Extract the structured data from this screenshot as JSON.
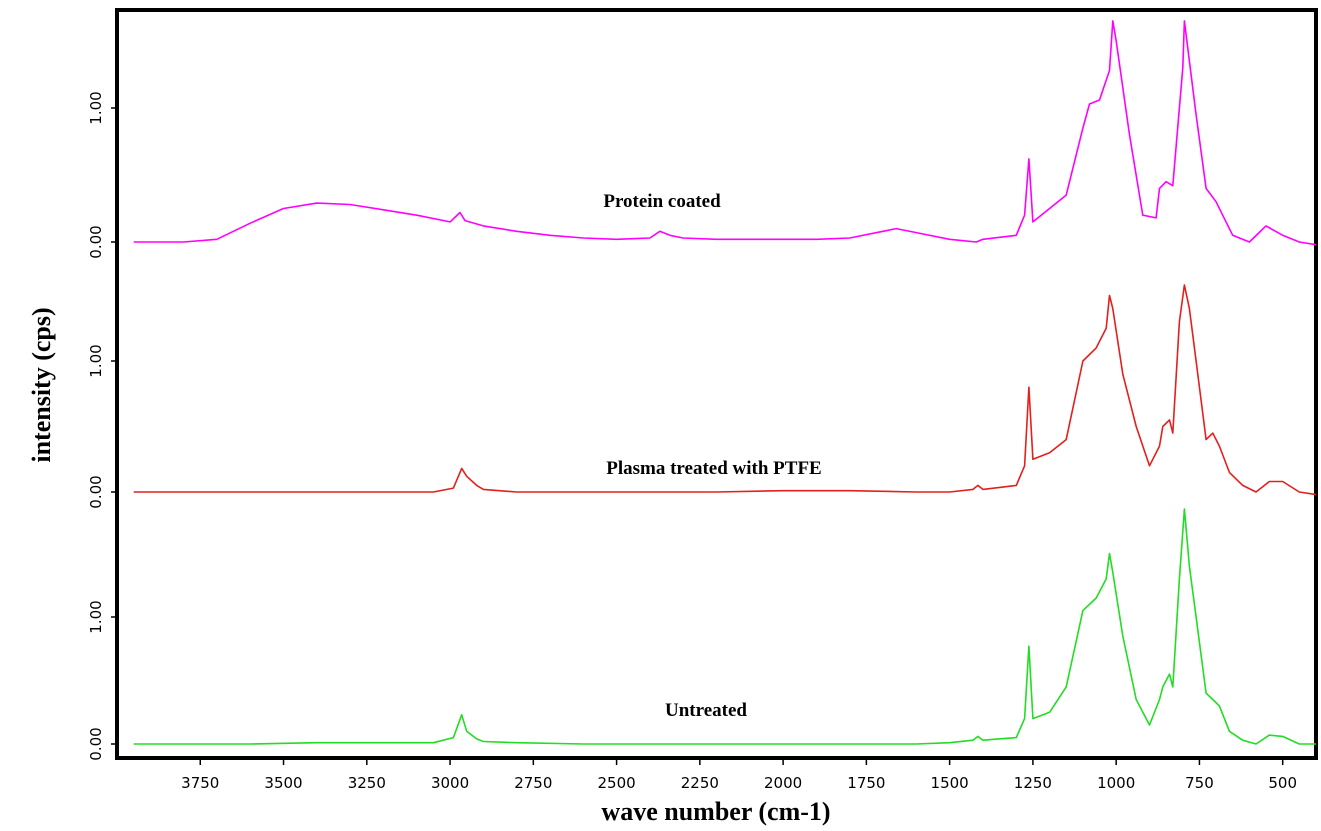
{
  "chart_data": {
    "type": "line",
    "title": "",
    "xlabel": "wave number (cm-1)",
    "ylabel": "intensity (cps)",
    "x_axis": {
      "reversed": true,
      "range": [
        4000,
        400
      ],
      "ticks": [
        3750,
        3500,
        3250,
        3000,
        2750,
        2500,
        2250,
        2000,
        1750,
        1500,
        1250,
        1000,
        750,
        500
      ],
      "tick_labels": [
        "3750",
        "3500",
        "3250",
        "3000",
        "2750",
        "2500",
        "2250",
        "2000",
        "1750",
        "1500",
        "1250",
        "1000",
        "750",
        "500"
      ]
    },
    "y_tick_labels": [
      "0.00",
      "1.00"
    ],
    "grid": false,
    "series": [
      {
        "name": "Protein coated",
        "color": "#ff00ff",
        "x": [
          3950,
          3800,
          3700,
          3600,
          3500,
          3400,
          3300,
          3200,
          3100,
          3000,
          2970,
          2955,
          2900,
          2800,
          2700,
          2600,
          2500,
          2400,
          2370,
          2340,
          2300,
          2200,
          2100,
          2000,
          1900,
          1800,
          1700,
          1660,
          1600,
          1500,
          1420,
          1400,
          1300,
          1275,
          1262,
          1250,
          1200,
          1150,
          1100,
          1080,
          1050,
          1020,
          1010,
          1000,
          960,
          920,
          880,
          870,
          850,
          830,
          800,
          795,
          780,
          760,
          730,
          700,
          680,
          650,
          600,
          550,
          500,
          450,
          400
        ],
        "y": [
          0.0,
          0.0,
          0.02,
          0.14,
          0.25,
          0.29,
          0.28,
          0.24,
          0.2,
          0.15,
          0.22,
          0.16,
          0.12,
          0.08,
          0.05,
          0.03,
          0.02,
          0.03,
          0.08,
          0.05,
          0.03,
          0.02,
          0.02,
          0.02,
          0.02,
          0.03,
          0.08,
          0.1,
          0.07,
          0.02,
          0.0,
          0.02,
          0.05,
          0.2,
          0.62,
          0.15,
          0.25,
          0.35,
          0.85,
          1.03,
          1.06,
          1.28,
          1.65,
          1.5,
          0.8,
          0.2,
          0.18,
          0.4,
          0.45,
          0.42,
          1.3,
          1.65,
          1.35,
          0.95,
          0.4,
          0.3,
          0.2,
          0.05,
          0.0,
          0.12,
          0.05,
          0.0,
          -0.02
        ]
      },
      {
        "name": "Plasma treated with PTFE",
        "color": "#e3201b",
        "x": [
          3950,
          3800,
          3600,
          3400,
          3200,
          3050,
          2990,
          2965,
          2950,
          2920,
          2900,
          2800,
          2600,
          2400,
          2200,
          2000,
          1800,
          1600,
          1500,
          1430,
          1415,
          1400,
          1300,
          1275,
          1262,
          1250,
          1200,
          1150,
          1100,
          1060,
          1030,
          1020,
          1010,
          980,
          940,
          900,
          870,
          860,
          840,
          830,
          810,
          795,
          780,
          760,
          730,
          710,
          690,
          660,
          620,
          580,
          540,
          500,
          450,
          400
        ],
        "y": [
          0.0,
          0.0,
          0.0,
          0.0,
          0.0,
          0.0,
          0.03,
          0.18,
          0.12,
          0.05,
          0.02,
          0.0,
          0.0,
          0.0,
          0.0,
          0.01,
          0.01,
          0.0,
          0.0,
          0.02,
          0.05,
          0.02,
          0.05,
          0.2,
          0.8,
          0.25,
          0.3,
          0.4,
          1.0,
          1.1,
          1.25,
          1.5,
          1.4,
          0.9,
          0.5,
          0.2,
          0.35,
          0.5,
          0.55,
          0.45,
          1.3,
          1.58,
          1.4,
          1.0,
          0.4,
          0.45,
          0.35,
          0.15,
          0.05,
          0.0,
          0.08,
          0.08,
          0.0,
          -0.02
        ]
      },
      {
        "name": "Untreated",
        "color": "#22dd22",
        "x": [
          3950,
          3800,
          3600,
          3400,
          3200,
          3050,
          2990,
          2965,
          2950,
          2920,
          2900,
          2800,
          2600,
          2400,
          2200,
          2000,
          1800,
          1600,
          1500,
          1430,
          1415,
          1400,
          1300,
          1275,
          1262,
          1250,
          1200,
          1150,
          1100,
          1060,
          1030,
          1020,
          1010,
          980,
          940,
          900,
          870,
          860,
          840,
          830,
          810,
          795,
          780,
          760,
          730,
          710,
          690,
          660,
          620,
          580,
          540,
          500,
          450,
          400
        ],
        "y": [
          0.0,
          0.0,
          0.0,
          0.01,
          0.01,
          0.01,
          0.05,
          0.23,
          0.1,
          0.04,
          0.02,
          0.01,
          0.0,
          0.0,
          0.0,
          0.0,
          0.0,
          0.0,
          0.01,
          0.03,
          0.06,
          0.03,
          0.05,
          0.2,
          0.77,
          0.2,
          0.25,
          0.45,
          1.05,
          1.15,
          1.3,
          1.5,
          1.35,
          0.85,
          0.35,
          0.15,
          0.35,
          0.45,
          0.55,
          0.45,
          1.3,
          1.85,
          1.4,
          1.0,
          0.4,
          0.35,
          0.3,
          0.1,
          0.03,
          0.0,
          0.07,
          0.06,
          0.0,
          0.0
        ]
      }
    ],
    "series_labels": [
      "Protein coated",
      "Plasma treated with PTFE",
      "Untreated"
    ]
  }
}
